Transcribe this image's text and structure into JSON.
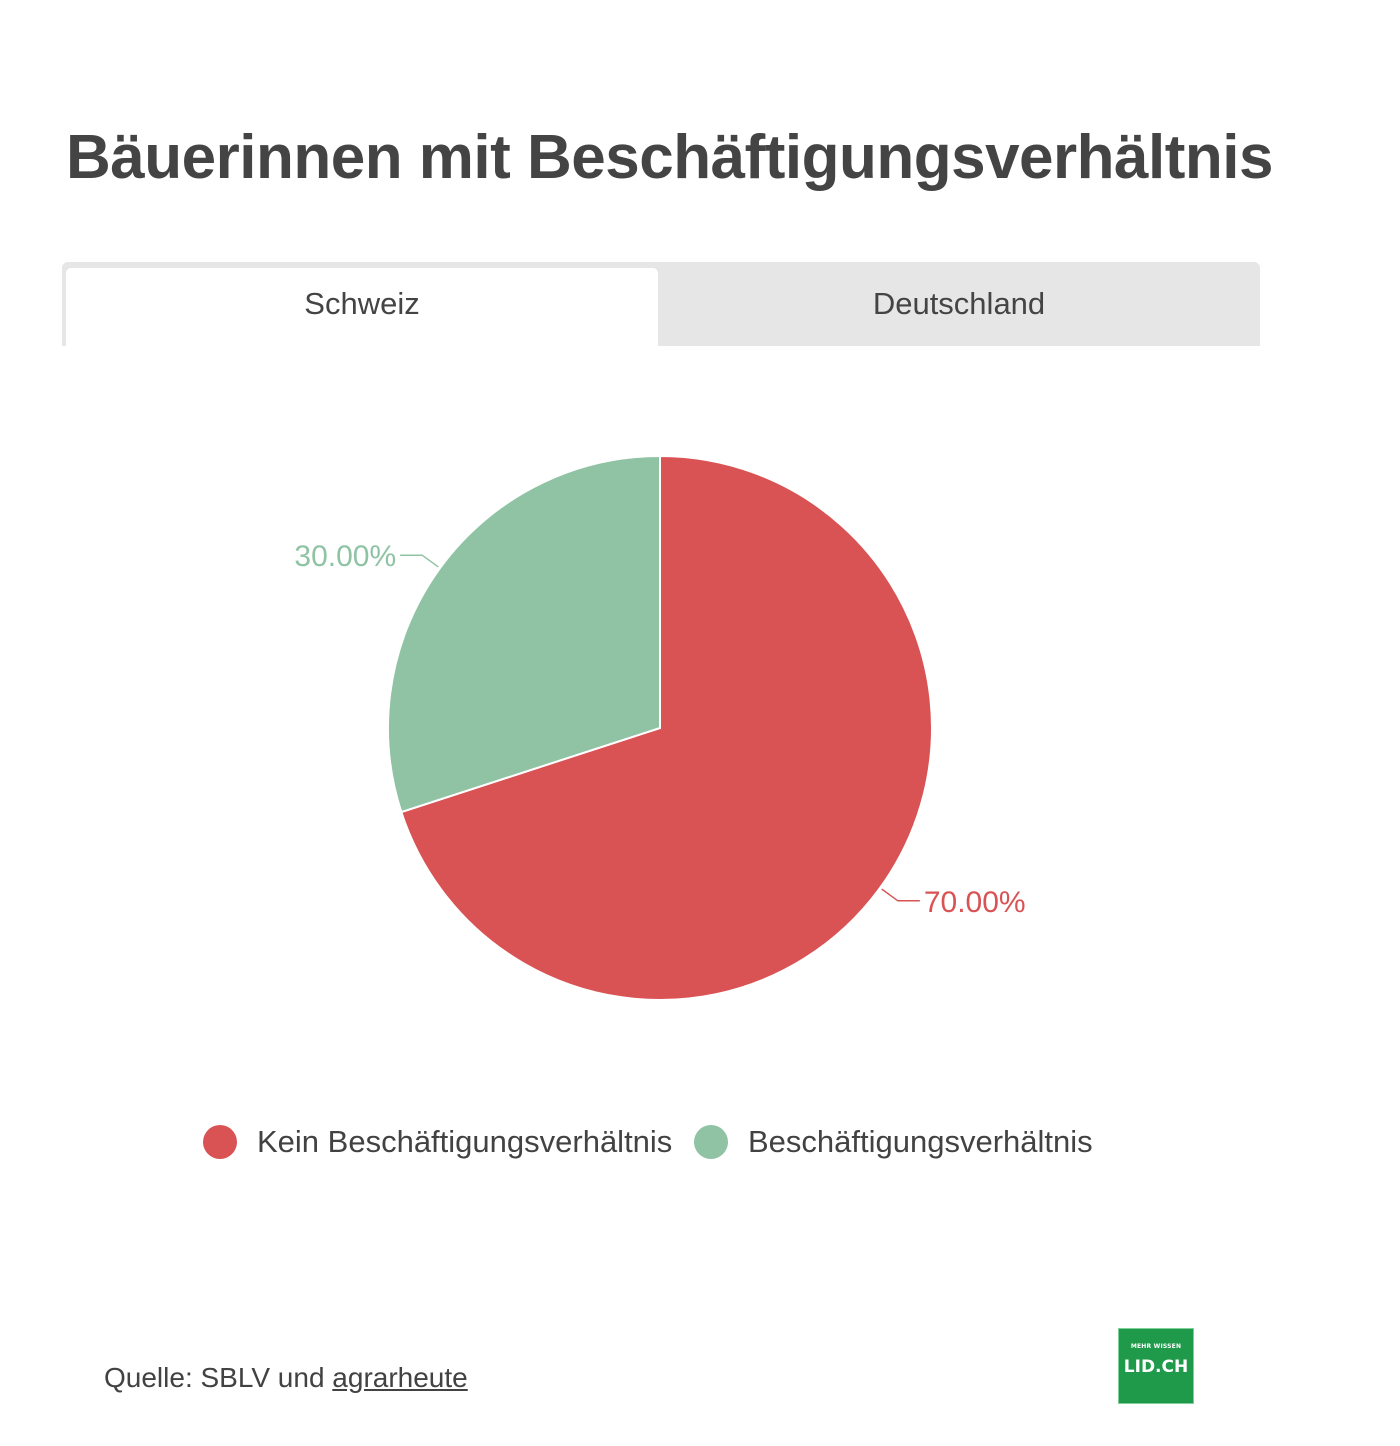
{
  "title": "Bäuerinnen mit Beschäftigungsverhältnis",
  "tabs": [
    {
      "label": "Schweiz",
      "active": true
    },
    {
      "label": "Deutschland",
      "active": false
    }
  ],
  "chart_data": {
    "type": "pie",
    "title": "Bäuerinnen mit Beschäftigungsverhältnis",
    "slices": [
      {
        "label": "Kein Beschäftigungsverhältnis",
        "value": 70.0,
        "display": "70.00%",
        "color": "#d95355"
      },
      {
        "label": "Beschäftigungsverhältnis",
        "value": 30.0,
        "display": "30.00%",
        "color": "#8fc3a4"
      }
    ],
    "legend_position": "bottom",
    "start_angle": "top, clockwise"
  },
  "source": {
    "prefix": "Quelle: SBLV und ",
    "link_text": "agrarheute"
  },
  "logo": {
    "tagline": "MEHR WISSEN",
    "text": "LID.CH",
    "color": "#1f9a4a"
  }
}
